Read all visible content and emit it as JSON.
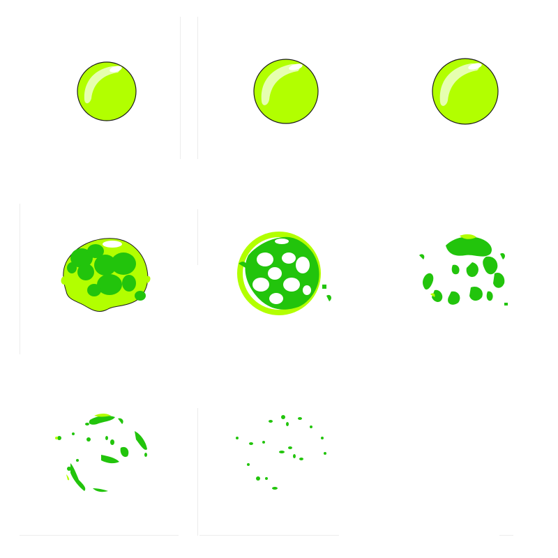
{
  "sprite_sheet": {
    "colors": {
      "bubble_light": "#c6ff1a",
      "bubble_main": "#b2ff00",
      "slime_dark": "#22c40c",
      "outline": "#1a1a1a",
      "highlight": "#ffffff",
      "background": "#ffffff"
    },
    "frames": [
      {
        "index": 1,
        "state": "bubble"
      },
      {
        "index": 2,
        "state": "bubble"
      },
      {
        "index": 3,
        "state": "bubble"
      },
      {
        "index": 4,
        "state": "splat-start"
      },
      {
        "index": 5,
        "state": "splat-burst"
      },
      {
        "index": 6,
        "state": "splat-break"
      },
      {
        "index": 7,
        "state": "splat-fragments"
      },
      {
        "index": 8,
        "state": "splat-drops"
      },
      {
        "index": 9,
        "state": "empty"
      }
    ]
  }
}
